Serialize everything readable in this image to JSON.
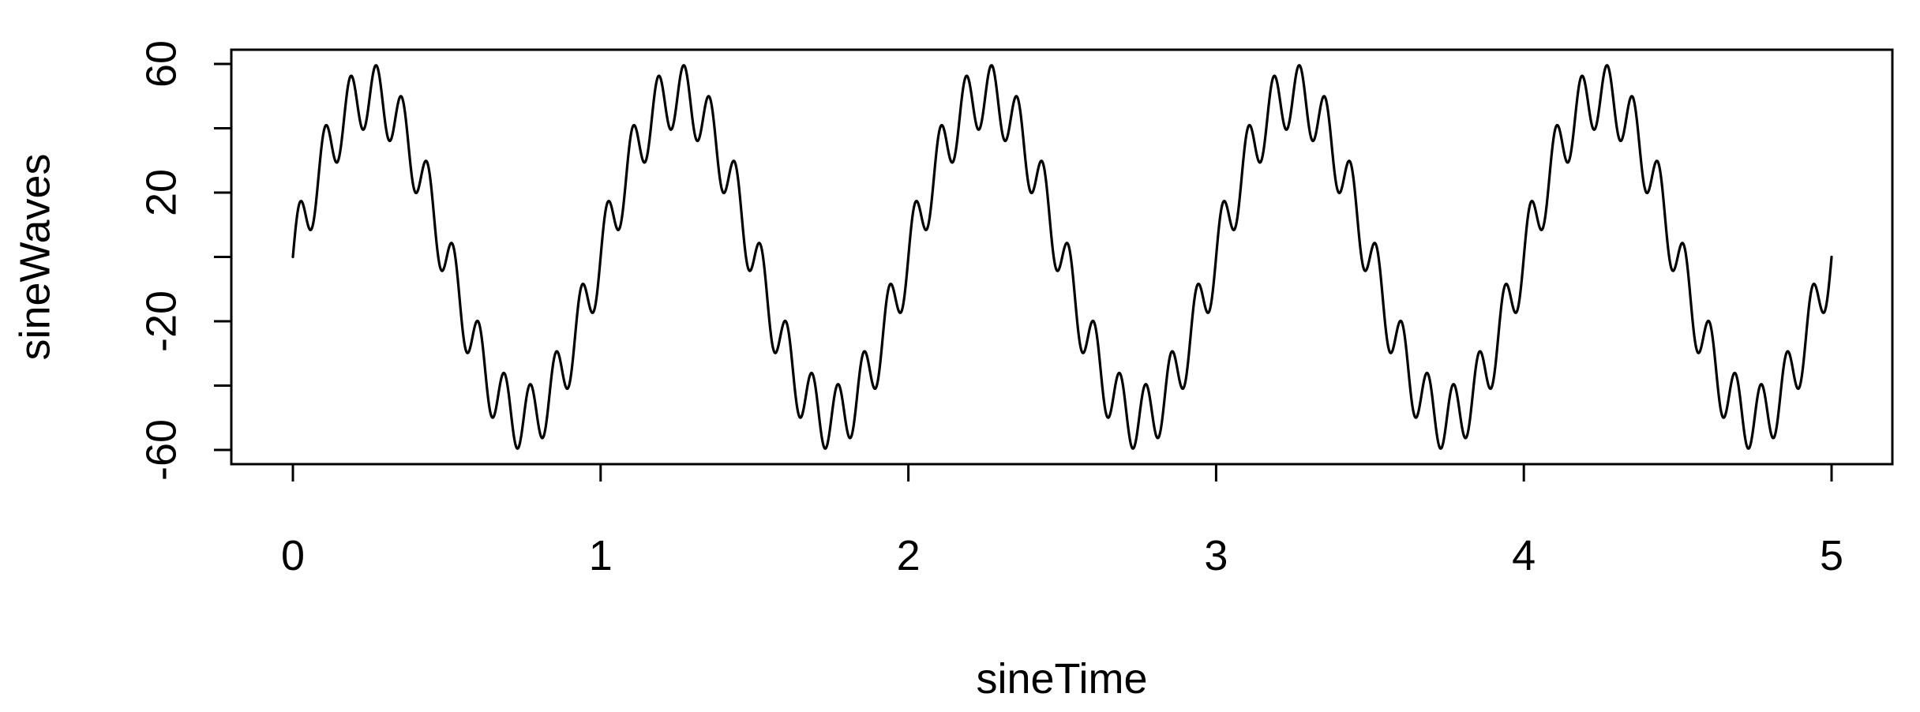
{
  "chart_data": {
    "type": "line",
    "title": "",
    "xlabel": "sineTime",
    "ylabel": "sineWaves",
    "xlim": [
      0,
      5
    ],
    "ylim": [
      -60,
      60
    ],
    "x_ticks": [
      0,
      1,
      2,
      3,
      4,
      5
    ],
    "x_tick_labels": [
      "0",
      "1",
      "2",
      "3",
      "4",
      "5"
    ],
    "y_ticks": [
      -60,
      -40,
      -20,
      0,
      20,
      40,
      60
    ],
    "y_tick_labels": [
      "-60",
      "",
      "-20",
      "",
      "20",
      "",
      "60"
    ],
    "grid": false,
    "legend": "none",
    "colors": {
      "line": "#000000",
      "axis": "#000000",
      "background": "#ffffff"
    },
    "series": [
      {
        "components": [
          {
            "amplitude": 50,
            "frequency_hz": 1
          },
          {
            "amplitude": 10,
            "frequency_hz": 12
          }
        ],
        "x_range": [
          0,
          5
        ],
        "sample_step": 0.001
      }
    ]
  }
}
